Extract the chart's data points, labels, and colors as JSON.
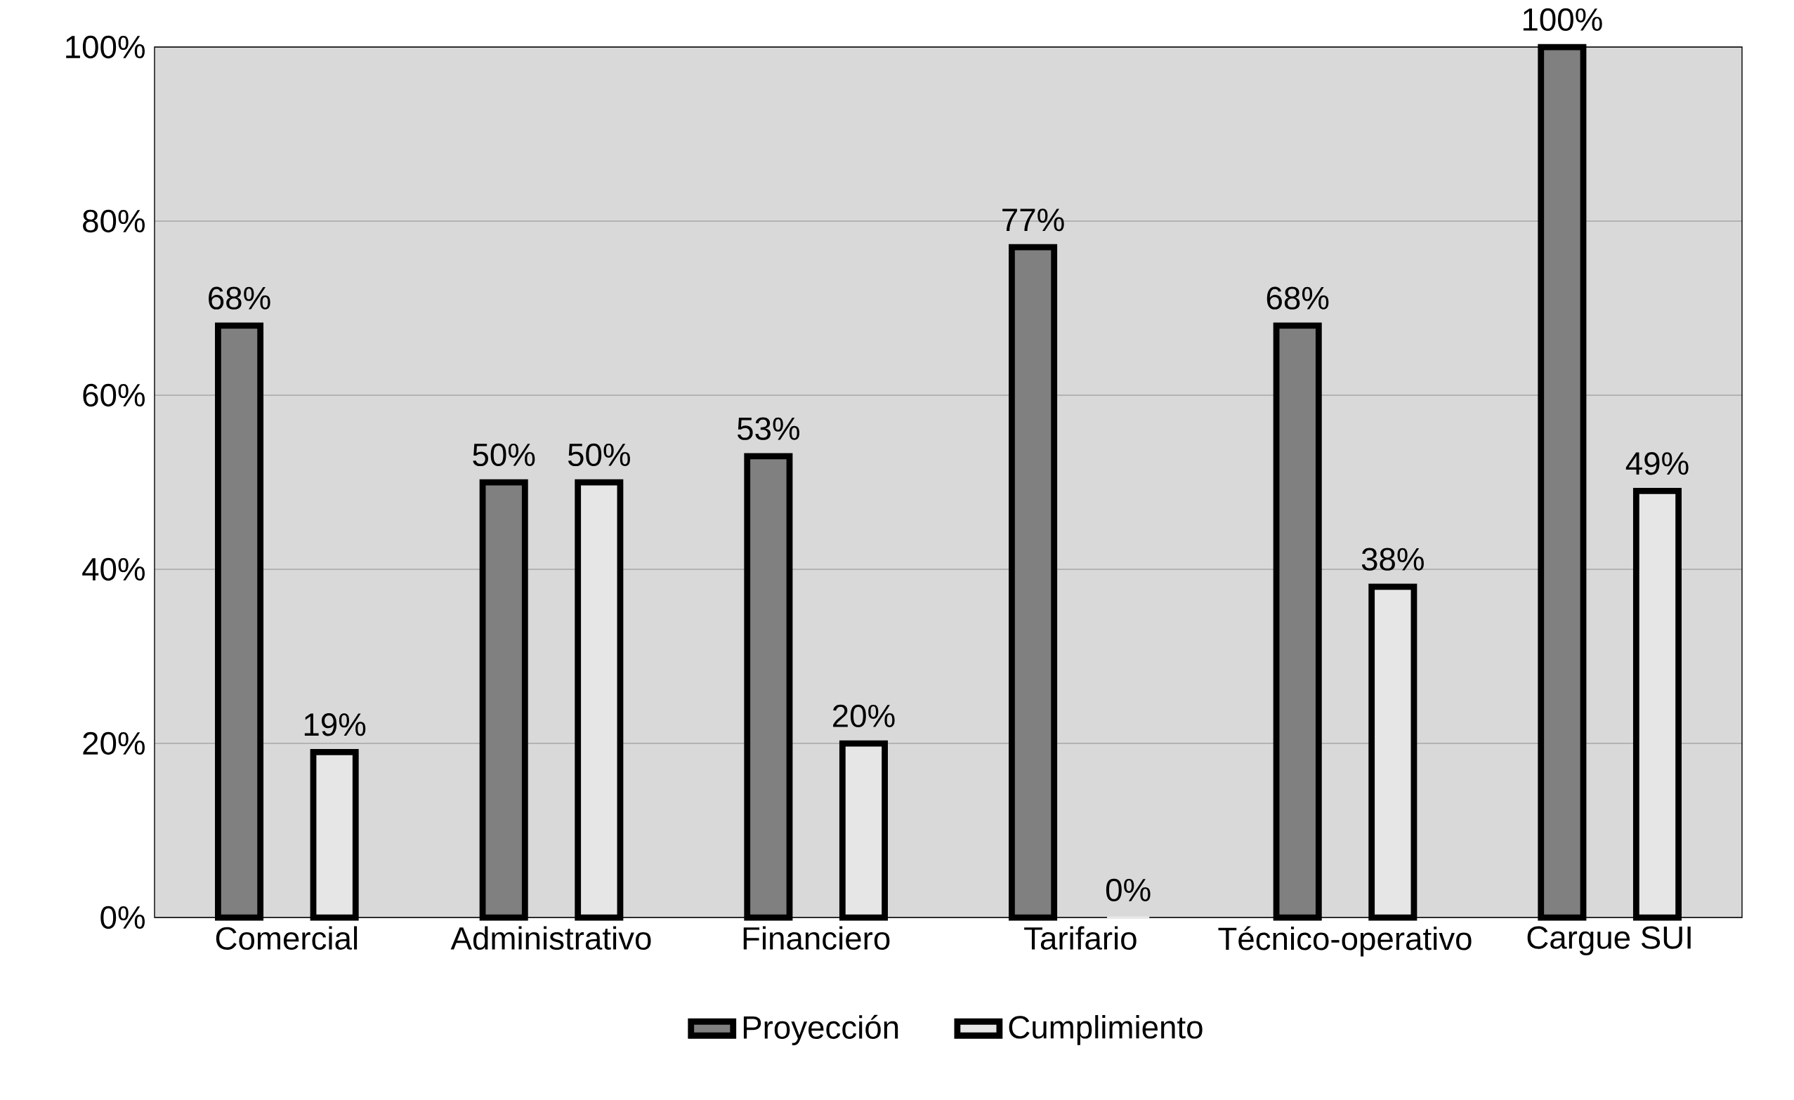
{
  "chart_data": {
    "type": "bar",
    "categories": [
      "Comercial",
      "Administrativo",
      "Financiero",
      "Tarifario",
      "Técnico-operativo",
      "Cargue SUI"
    ],
    "series": [
      {
        "name": "Proyección",
        "color": "#808080",
        "values": [
          68,
          50,
          53,
          77,
          68,
          100
        ],
        "value_labels": [
          "68%",
          "50%",
          "53%",
          "77%",
          "68%",
          "100%"
        ]
      },
      {
        "name": "Cumplimiento",
        "color": "#e6e6e6",
        "values": [
          19,
          50,
          20,
          0,
          38,
          49
        ],
        "value_labels": [
          "19%",
          "50%",
          "20%",
          "0%",
          "38%",
          "49%"
        ]
      }
    ],
    "ylim": [
      0,
      100
    ],
    "yticks": [
      {
        "value": 0,
        "label": "0%"
      },
      {
        "value": 20,
        "label": "20%"
      },
      {
        "value": 40,
        "label": "40%"
      },
      {
        "value": 60,
        "label": "60%"
      },
      {
        "value": 80,
        "label": "80%"
      },
      {
        "value": 100,
        "label": "100%"
      }
    ],
    "grid": "y",
    "legend": "bottom"
  }
}
